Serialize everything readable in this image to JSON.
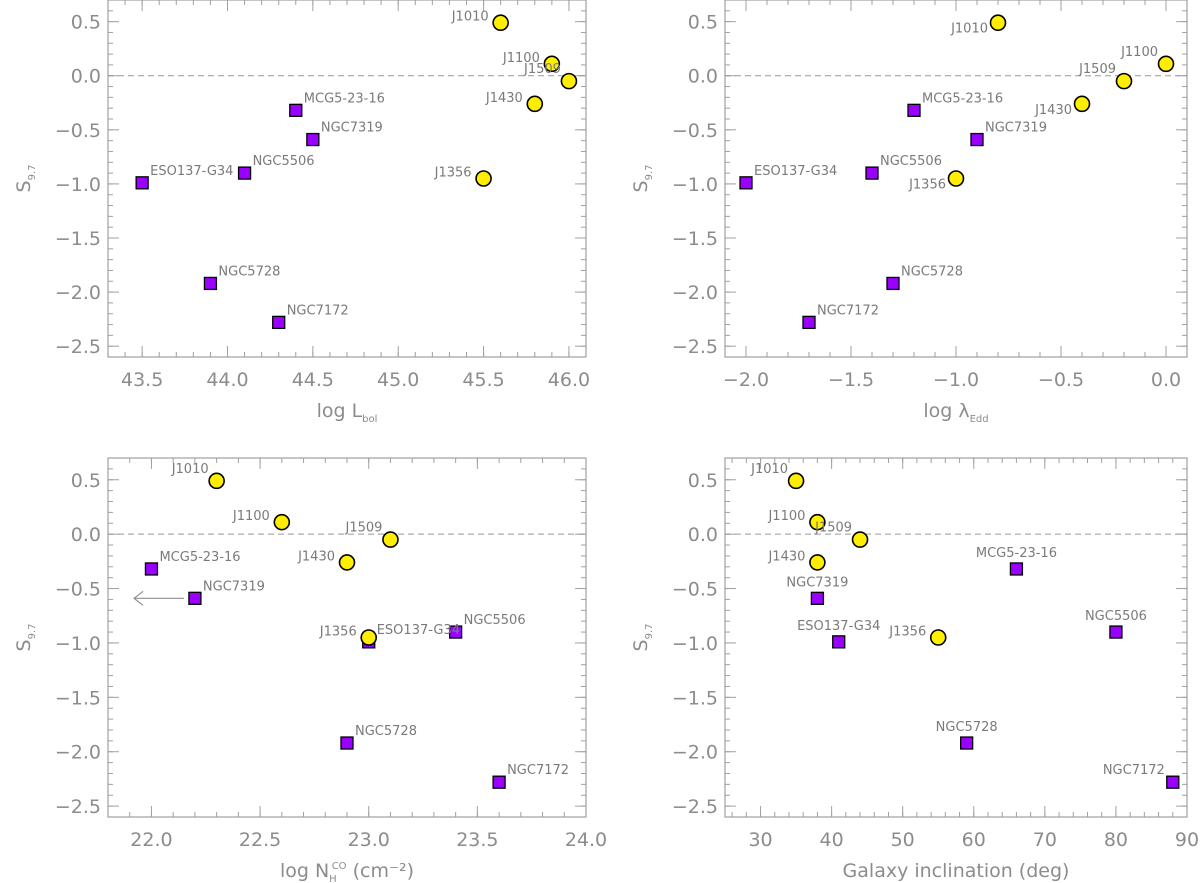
{
  "colors": {
    "qso": "#ffee00",
    "sy": "#9900ff",
    "edge": "#000000",
    "axis": "#a0a0a0",
    "text": "#8c8c8c"
  },
  "chart_data": [
    {
      "type": "scatter",
      "id": "p1",
      "xlabel": "log L",
      "xlabel_sub": "bol",
      "xlabel_sup": "",
      "xlabel_tail": "",
      "ylabel": "S",
      "ylabel_sub": "9.7",
      "xlim": [
        43.3,
        46.1
      ],
      "ylim": [
        -2.6,
        0.7
      ],
      "xticks": [
        43.5,
        44.0,
        44.5,
        45.0,
        45.5,
        46.0
      ],
      "xticklabels": [
        "43.5",
        "44.0",
        "44.5",
        "45.0",
        "45.5",
        "46.0"
      ],
      "xminor": 0.1,
      "yticks": [
        0.5,
        0.0,
        -0.5,
        -1.0,
        -1.5,
        -2.0,
        -2.5
      ],
      "yticklabels": [
        "0.5",
        "0.0",
        "−0.5",
        "−1.0",
        "−1.5",
        "−2.0",
        "−2.5"
      ],
      "yminor": 0.1,
      "zero_line": true,
      "points": [
        {
          "name": "J1010",
          "x": 45.6,
          "y": 0.49,
          "marker": "circle",
          "label_pos": "left"
        },
        {
          "name": "J1100",
          "x": 45.9,
          "y": 0.11,
          "marker": "circle",
          "label_pos": "left"
        },
        {
          "name": "J1509",
          "x": 46.0,
          "y": -0.05,
          "marker": "circle",
          "label_pos": "upleft"
        },
        {
          "name": "J1430",
          "x": 45.8,
          "y": -0.26,
          "marker": "circle",
          "label_pos": "left"
        },
        {
          "name": "J1356",
          "x": 45.5,
          "y": -0.95,
          "marker": "circle",
          "label_pos": "left"
        },
        {
          "name": "MCG5-23-16",
          "x": 44.4,
          "y": -0.32,
          "marker": "square",
          "label_pos": "upright"
        },
        {
          "name": "NGC7319",
          "x": 44.5,
          "y": -0.59,
          "marker": "square",
          "label_pos": "upright"
        },
        {
          "name": "NGC5506",
          "x": 44.1,
          "y": -0.9,
          "marker": "square",
          "label_pos": "upright"
        },
        {
          "name": "ESO137-G34",
          "x": 43.5,
          "y": -0.99,
          "marker": "square",
          "label_pos": "upright"
        },
        {
          "name": "NGC5728",
          "x": 43.9,
          "y": -1.92,
          "marker": "square",
          "label_pos": "upright"
        },
        {
          "name": "NGC7172",
          "x": 44.3,
          "y": -2.28,
          "marker": "square",
          "label_pos": "upright"
        }
      ]
    },
    {
      "type": "scatter",
      "id": "p2",
      "xlabel": "log λ",
      "xlabel_sub": "Edd",
      "xlabel_sup": "",
      "xlabel_tail": "",
      "ylabel": "S",
      "ylabel_sub": "9.7",
      "xlim": [
        -2.1,
        0.1
      ],
      "ylim": [
        -2.6,
        0.7
      ],
      "xticks": [
        -2.0,
        -1.5,
        -1.0,
        -0.5,
        0.0
      ],
      "xticklabels": [
        "−2.0",
        "−1.5",
        "−1.0",
        "−0.5",
        "0.0"
      ],
      "xminor": 0.1,
      "yticks": [
        0.5,
        0.0,
        -0.5,
        -1.0,
        -1.5,
        -2.0,
        -2.5
      ],
      "yticklabels": [
        "0.5",
        "0.0",
        "−0.5",
        "−1.0",
        "−1.5",
        "−2.0",
        "−2.5"
      ],
      "yminor": 0.1,
      "zero_line": true,
      "points": [
        {
          "name": "J1010",
          "x": -0.8,
          "y": 0.49,
          "marker": "circle",
          "label_pos": "downleft"
        },
        {
          "name": "J1100",
          "x": 0.0,
          "y": 0.11,
          "marker": "circle",
          "label_pos": "upleft"
        },
        {
          "name": "J1509",
          "x": -0.2,
          "y": -0.05,
          "marker": "circle",
          "label_pos": "upleft"
        },
        {
          "name": "J1430",
          "x": -0.4,
          "y": -0.26,
          "marker": "circle",
          "label_pos": "downleft"
        },
        {
          "name": "J1356",
          "x": -1.0,
          "y": -0.95,
          "marker": "circle",
          "label_pos": "downleft"
        },
        {
          "name": "MCG5-23-16",
          "x": -1.2,
          "y": -0.32,
          "marker": "square",
          "label_pos": "upright"
        },
        {
          "name": "NGC7319",
          "x": -0.9,
          "y": -0.59,
          "marker": "square",
          "label_pos": "upright"
        },
        {
          "name": "NGC5506",
          "x": -1.4,
          "y": -0.9,
          "marker": "square",
          "label_pos": "upright"
        },
        {
          "name": "ESO137-G34",
          "x": -2.0,
          "y": -0.99,
          "marker": "square",
          "label_pos": "upright"
        },
        {
          "name": "NGC5728",
          "x": -1.3,
          "y": -1.92,
          "marker": "square",
          "label_pos": "upright"
        },
        {
          "name": "NGC7172",
          "x": -1.7,
          "y": -2.28,
          "marker": "square",
          "label_pos": "upright"
        }
      ]
    },
    {
      "type": "scatter",
      "id": "p3",
      "xlabel": "log N",
      "xlabel_sub": "H",
      "xlabel_sup": "CO",
      "xlabel_tail": " (cm⁻²)",
      "ylabel": "S",
      "ylabel_sub": "9.7",
      "xlim": [
        21.8,
        24.0
      ],
      "ylim": [
        -2.6,
        0.7
      ],
      "xticks": [
        22.0,
        22.5,
        23.0,
        23.5,
        24.0
      ],
      "xticklabels": [
        "22.0",
        "22.5",
        "23.0",
        "23.5",
        "24.0"
      ],
      "xminor": 0.1,
      "yticks": [
        0.5,
        0.0,
        -0.5,
        -1.0,
        -1.5,
        -2.0,
        -2.5
      ],
      "yticklabels": [
        "0.5",
        "0.0",
        "−0.5",
        "−1.0",
        "−1.5",
        "−2.0",
        "−2.5"
      ],
      "yminor": 0.1,
      "zero_line": true,
      "upper_limit_arrow": {
        "from_x": 22.15,
        "to_x": 21.92,
        "y": -0.59
      },
      "points": [
        {
          "name": "J1010",
          "x": 22.3,
          "y": 0.49,
          "marker": "circle",
          "label_pos": "upleft"
        },
        {
          "name": "J1100",
          "x": 22.6,
          "y": 0.11,
          "marker": "circle",
          "label_pos": "left"
        },
        {
          "name": "J1509",
          "x": 23.1,
          "y": -0.05,
          "marker": "circle",
          "label_pos": "upleft"
        },
        {
          "name": "J1430",
          "x": 22.9,
          "y": -0.26,
          "marker": "circle",
          "label_pos": "left"
        },
        {
          "name": "ESO137-G34",
          "x": 23.0,
          "y": -0.99,
          "marker": "square",
          "label_pos": "upright"
        },
        {
          "name": "J1356",
          "x": 23.0,
          "y": -0.95,
          "marker": "circle",
          "label_pos": "left"
        },
        {
          "name": "MCG5-23-16",
          "x": 22.0,
          "y": -0.32,
          "marker": "square",
          "label_pos": "upright"
        },
        {
          "name": "NGC7319",
          "x": 22.2,
          "y": -0.59,
          "marker": "square",
          "label_pos": "upright"
        },
        {
          "name": "NGC5506",
          "x": 23.4,
          "y": -0.9,
          "marker": "square",
          "label_pos": "upright"
        },
        {
          "name": "NGC5728",
          "x": 22.9,
          "y": -1.92,
          "marker": "square",
          "label_pos": "upright"
        },
        {
          "name": "NGC7172",
          "x": 23.6,
          "y": -2.28,
          "marker": "square",
          "label_pos": "upright"
        }
      ]
    },
    {
      "type": "scatter",
      "id": "p4",
      "xlabel": "Galaxy inclination (deg)",
      "xlabel_sub": "",
      "xlabel_sup": "",
      "xlabel_tail": "",
      "ylabel": "S",
      "ylabel_sub": "9.7",
      "xlim": [
        25,
        90
      ],
      "ylim": [
        -2.6,
        0.7
      ],
      "xticks": [
        30,
        40,
        50,
        60,
        70,
        80,
        90
      ],
      "xticklabels": [
        "30",
        "40",
        "50",
        "60",
        "70",
        "80",
        "90"
      ],
      "xminor": 2,
      "yticks": [
        0.5,
        0.0,
        -0.5,
        -1.0,
        -1.5,
        -2.0,
        -2.5
      ],
      "yticklabels": [
        "0.5",
        "0.0",
        "−0.5",
        "−1.0",
        "−1.5",
        "−2.0",
        "−2.5"
      ],
      "yminor": 0.1,
      "zero_line": true,
      "points": [
        {
          "name": "J1010",
          "x": 35,
          "y": 0.49,
          "marker": "circle",
          "label_pos": "upleft"
        },
        {
          "name": "J1100",
          "x": 38,
          "y": 0.11,
          "marker": "circle",
          "label_pos": "left"
        },
        {
          "name": "J1509",
          "x": 44,
          "y": -0.05,
          "marker": "circle",
          "label_pos": "upleft"
        },
        {
          "name": "J1430",
          "x": 38,
          "y": -0.26,
          "marker": "circle",
          "label_pos": "left"
        },
        {
          "name": "J1356",
          "x": 55,
          "y": -0.95,
          "marker": "circle",
          "label_pos": "left"
        },
        {
          "name": "MCG5-23-16",
          "x": 66,
          "y": -0.32,
          "marker": "square",
          "label_pos": "up"
        },
        {
          "name": "NGC7319",
          "x": 38,
          "y": -0.59,
          "marker": "square",
          "label_pos": "up"
        },
        {
          "name": "ESO137-G34",
          "x": 41,
          "y": -0.99,
          "marker": "square",
          "label_pos": "up"
        },
        {
          "name": "NGC5506",
          "x": 80,
          "y": -0.9,
          "marker": "square",
          "label_pos": "up"
        },
        {
          "name": "NGC5728",
          "x": 59,
          "y": -1.92,
          "marker": "square",
          "label_pos": "up"
        },
        {
          "name": "NGC7172",
          "x": 88,
          "y": -2.28,
          "marker": "square",
          "label_pos": "upleft"
        }
      ]
    }
  ]
}
